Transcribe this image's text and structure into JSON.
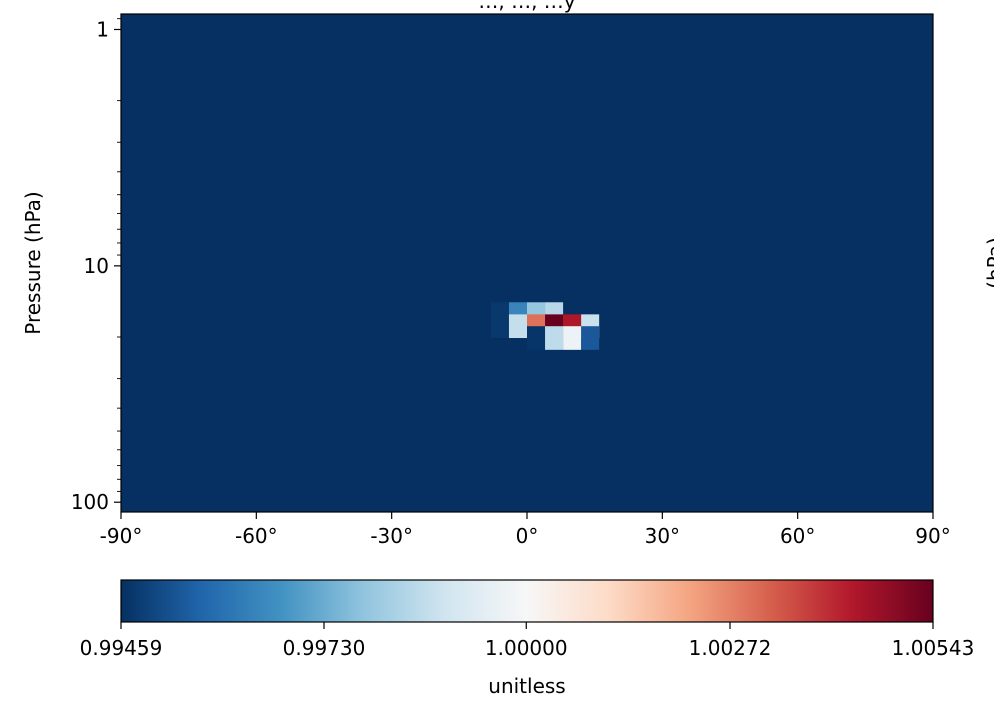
{
  "chart_data": {
    "type": "heatmap",
    "title": "…, …, …y",
    "ylabel": "Pressure (hPa)",
    "xlabel": "",
    "x_ticks": [
      "-90°",
      "-60°",
      "-30°",
      "0°",
      "30°",
      "60°",
      "90°"
    ],
    "x_tick_values": [
      -90,
      -60,
      -30,
      0,
      30,
      60,
      90
    ],
    "xlim": [
      -90,
      90
    ],
    "y_scale": "log",
    "y_ticks": [
      "1",
      "10",
      "100"
    ],
    "y_tick_values": [
      1,
      10,
      100
    ],
    "ylim": [
      110,
      0.86
    ],
    "background_value": 0.99459,
    "cell_width_deg": 4,
    "cells": [
      {
        "x": -6,
        "p": 16.0,
        "value": 0.99475
      },
      {
        "x": -2,
        "p": 16.0,
        "value": 0.9964
      },
      {
        "x": 2,
        "p": 16.0,
        "value": 0.9979
      },
      {
        "x": 6,
        "p": 16.0,
        "value": 0.9985
      },
      {
        "x": -6,
        "p": 18.0,
        "value": 0.99475
      },
      {
        "x": -2,
        "p": 18.0,
        "value": 0.9987
      },
      {
        "x": 2,
        "p": 18.0,
        "value": 1.003
      },
      {
        "x": 6,
        "p": 18.0,
        "value": 1.00543
      },
      {
        "x": 10,
        "p": 18.0,
        "value": 1.0044
      },
      {
        "x": 14,
        "p": 18.0,
        "value": 0.9988
      },
      {
        "x": 2,
        "p": 20.2,
        "value": 0.9947
      },
      {
        "x": 6,
        "p": 20.2,
        "value": 0.9986
      },
      {
        "x": 10,
        "p": 20.2,
        "value": 0.9997
      },
      {
        "x": 14,
        "p": 20.2,
        "value": 0.9954
      }
    ],
    "colorbar": {
      "label": "unitless",
      "min": 0.99459,
      "max": 1.00543,
      "ticks": [
        "0.99459",
        "0.99730",
        "1.00000",
        "1.00272",
        "1.00543"
      ],
      "tick_values": [
        0.99459,
        0.9973,
        1.0,
        1.00272,
        1.00543
      ],
      "colormap": "RdBu_r"
    },
    "right_panel_ylabel_fragment": "(hPa)"
  }
}
